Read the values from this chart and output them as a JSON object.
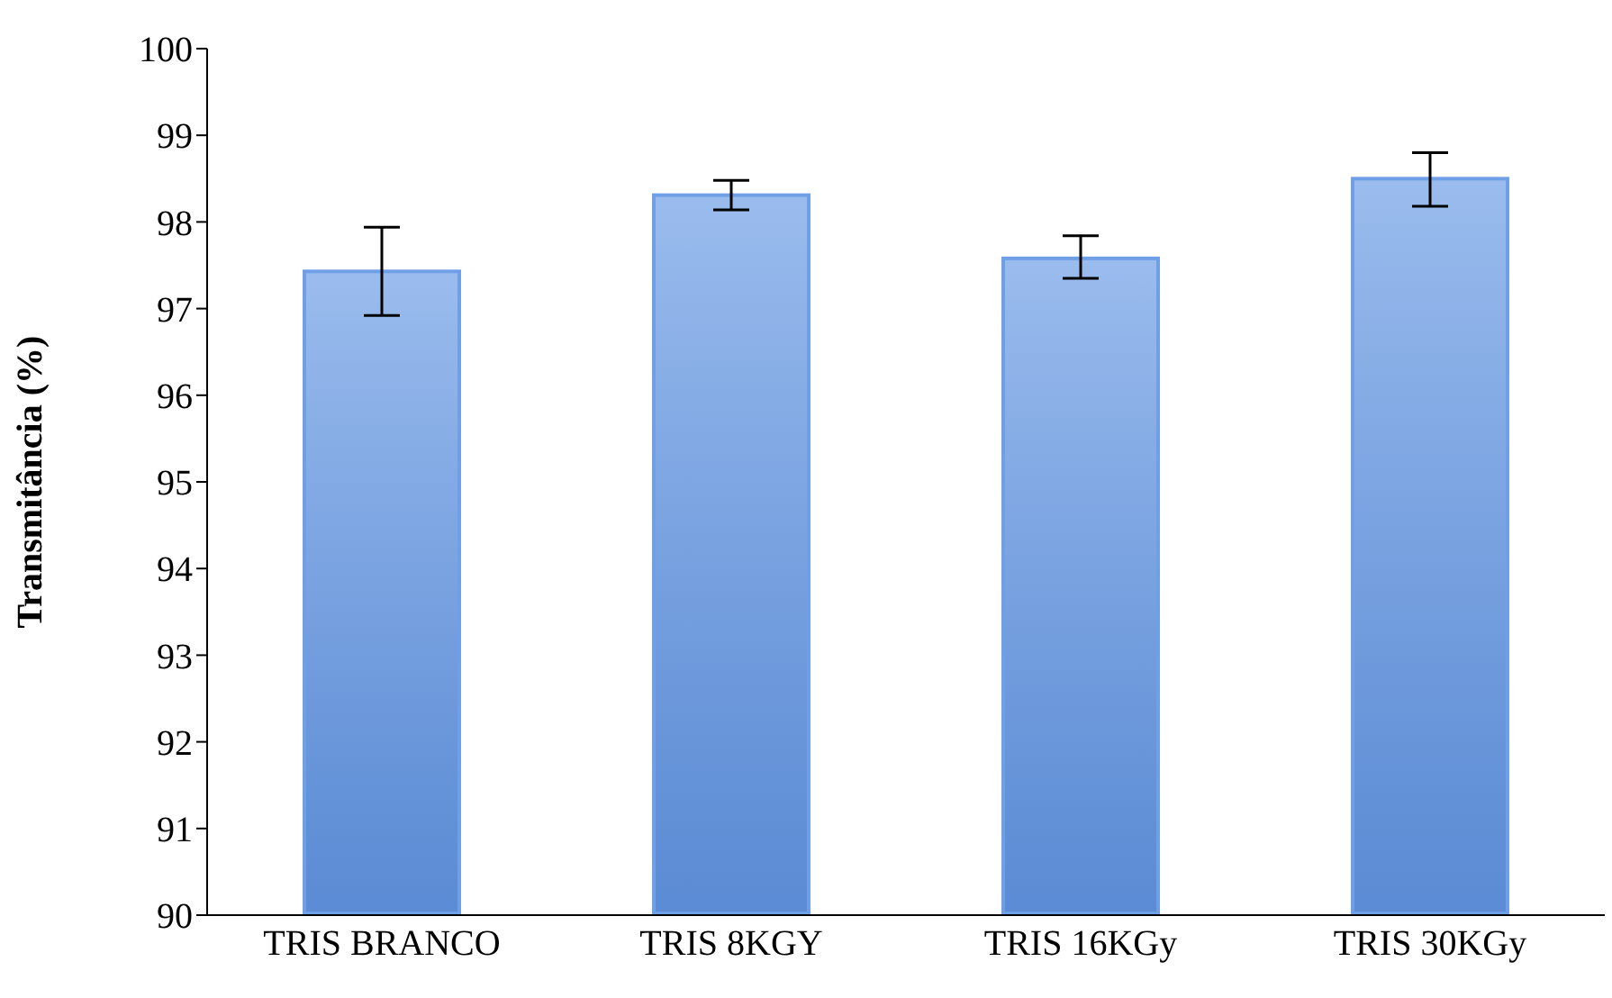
{
  "chart_data": {
    "type": "bar",
    "ylabel": "Transmitância (%)",
    "categories": [
      "TRIS BRANCO",
      "TRIS 8KGY",
      "TRIS 16KGy",
      "TRIS 30KGy"
    ],
    "values": [
      97.45,
      98.33,
      97.6,
      98.52
    ],
    "errors": [
      [
        96.92,
        97.94
      ],
      [
        98.14,
        98.48
      ],
      [
        97.35,
        97.84
      ],
      [
        98.18,
        98.8
      ]
    ],
    "color": "#6f9fe6",
    "ylim": [
      90,
      100
    ],
    "yticks": [
      90,
      91,
      92,
      93,
      94,
      95,
      96,
      97,
      98,
      99,
      100
    ],
    "grid": false,
    "legend": false
  }
}
